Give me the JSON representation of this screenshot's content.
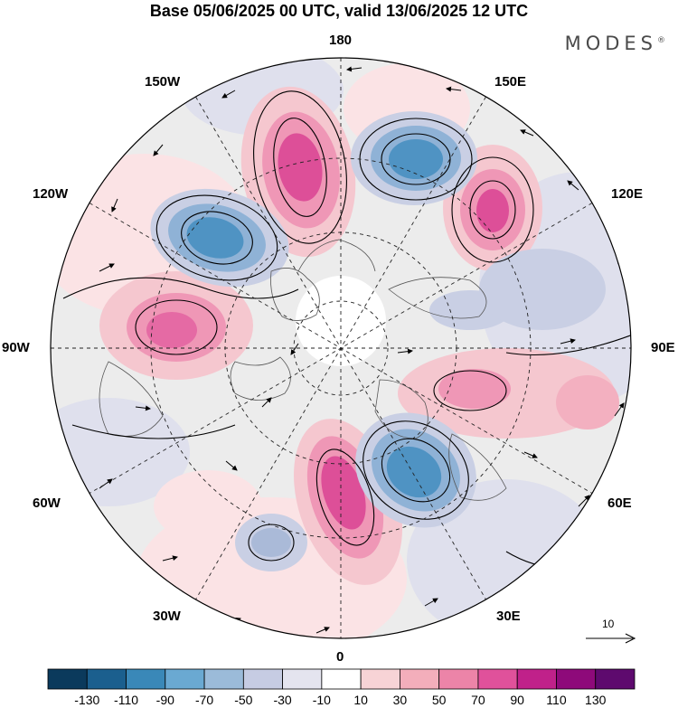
{
  "title": "Base 05/06/2025 00 UTC, valid 13/06/2025 12 UTC",
  "brand": "MODES",
  "brand_mark": "®",
  "longitude_labels": {
    "180": "180",
    "150e": "150E",
    "120e": "120E",
    "90e": "90E",
    "60e": "60E",
    "30e": "30E",
    "0": "0",
    "30w": "30W",
    "60w": "60W",
    "90w": "90W",
    "120w": "120W",
    "150w": "150W"
  },
  "reference_vector_label": "10",
  "colorbar": {
    "labels": [
      "-130",
      "-110",
      "-90",
      "-70",
      "-50",
      "-30",
      "-10",
      "10",
      "30",
      "50",
      "70",
      "90",
      "110",
      "130"
    ],
    "colors": [
      "#0b3a5c",
      "#1b5f8e",
      "#3a88b8",
      "#6aa9d2",
      "#9bbbd9",
      "#c6cce3",
      "#e4e4ef",
      "#ffffff",
      "#f7d3d6",
      "#f3aebb",
      "#ec84a8",
      "#e0519b",
      "#c0218a",
      "#8e0a7a",
      "#5e0a6e"
    ]
  },
  "anomaly_colors": {
    "neg_strong": "#4f93c3",
    "neg_mid": "#8fb2d6",
    "neg_weak": "#c9cfe4",
    "neg_faint": "#e3e3ef",
    "pos_faint": "#fbe3e5",
    "pos_weak": "#f5c7cf",
    "pos_mid": "#ef97b6",
    "pos_strong": "#dd4f98"
  }
}
